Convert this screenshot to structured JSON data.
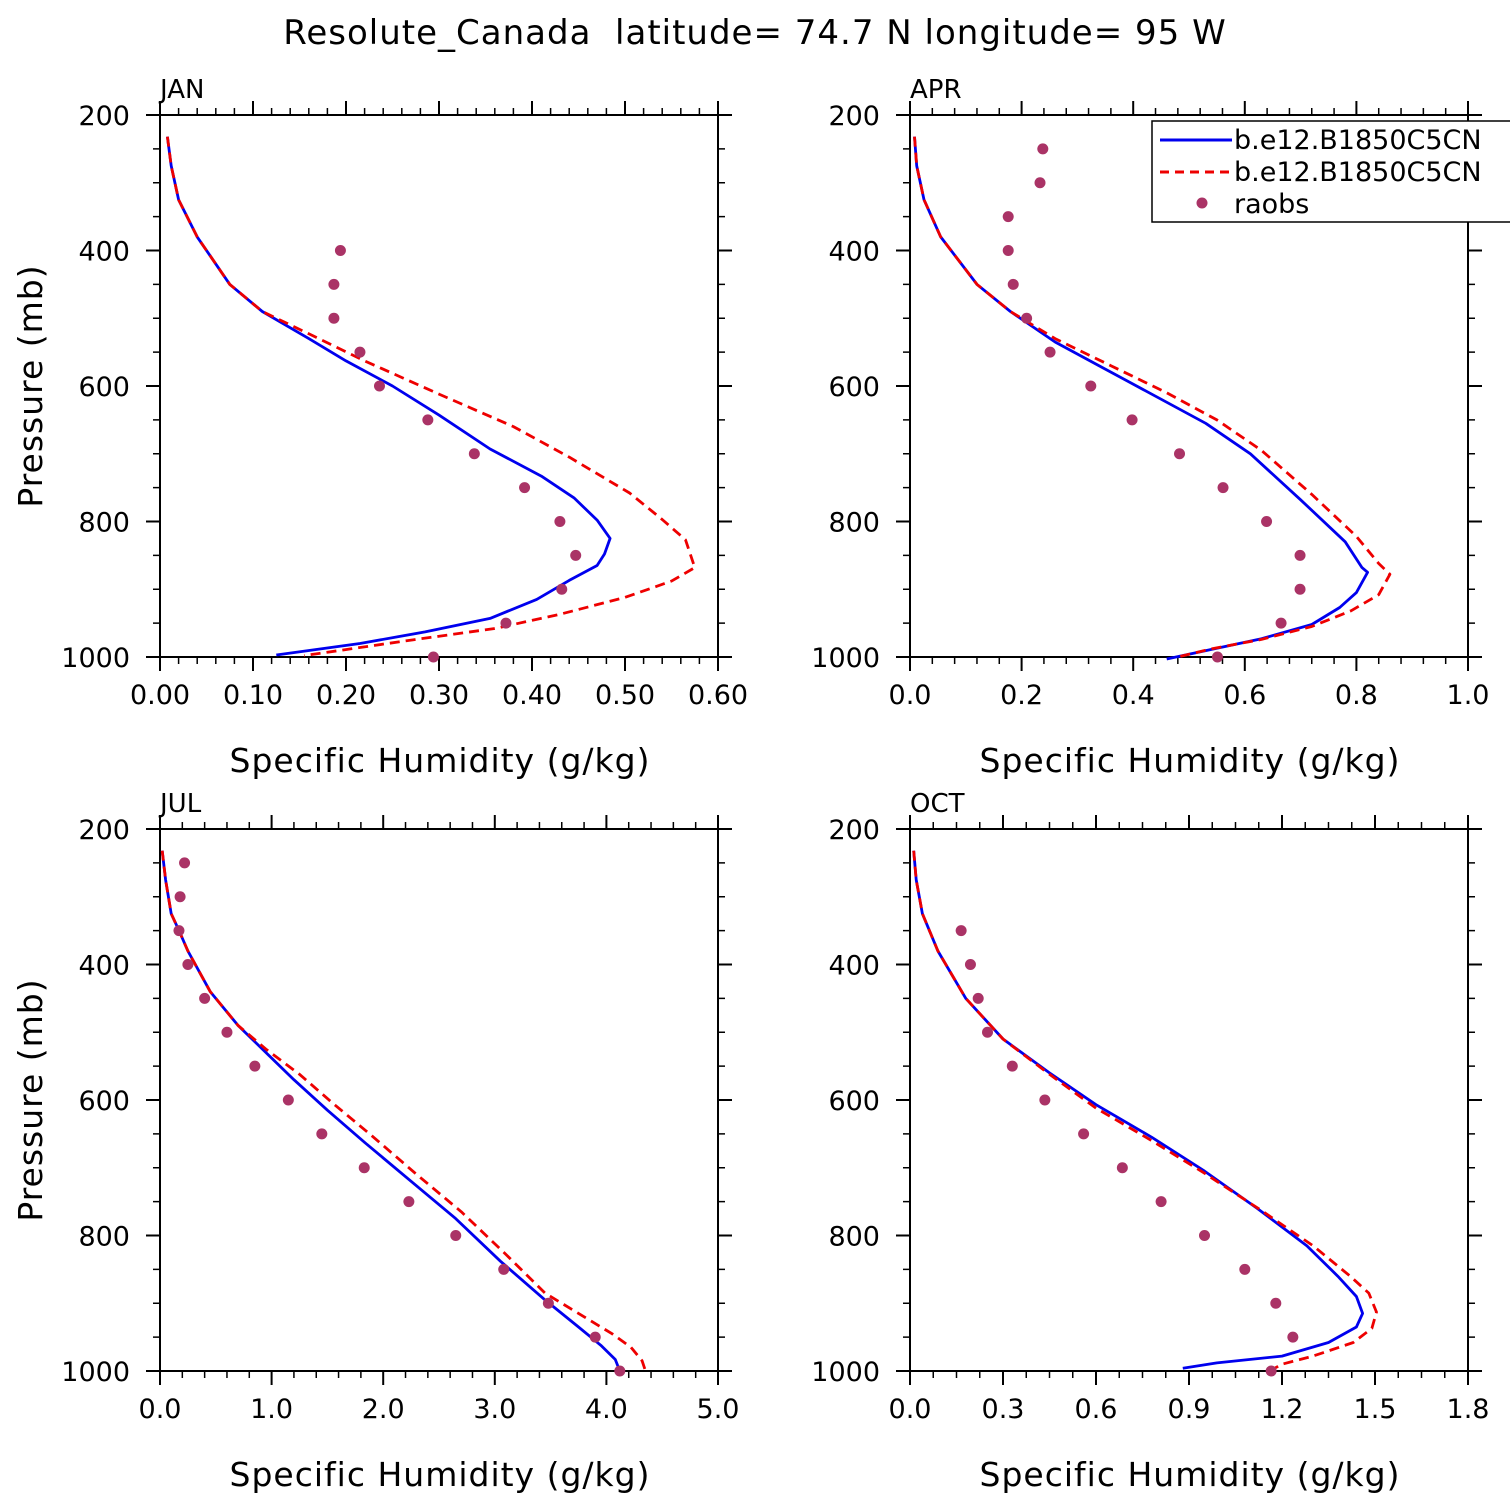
{
  "title": "Resolute_Canada  latitude= 74.7 N longitude= 95 W",
  "legend": {
    "entries": [
      {
        "label": "b.e12.B1850C5CN",
        "style": "solid",
        "color": "#0000ee"
      },
      {
        "label": "b.e12.B1850C5CN",
        "style": "dashed",
        "color": "#ee0000"
      },
      {
        "label": "raobs",
        "style": "dot",
        "color": "#aa3366"
      }
    ]
  },
  "chart_data": [
    {
      "type": "line",
      "panel": "JAN",
      "xlabel": "Specific Humidity (g/kg)",
      "ylabel": "Pressure (mb)",
      "xlim": [
        0,
        0.6
      ],
      "ylim": [
        1000,
        200
      ],
      "xticks": [
        "0.00",
        "0.10",
        "0.20",
        "0.30",
        "0.40",
        "0.50",
        "0.60"
      ],
      "yticks": [
        "200",
        "400",
        "600",
        "800",
        "1000"
      ],
      "series": [
        {
          "name": "b.e12.B1850C5CN",
          "style": "solid",
          "color": "#0000ee",
          "x": [
            0.008,
            0.012,
            0.02,
            0.04,
            0.075,
            0.11,
            0.16,
            0.2,
            0.25,
            0.3,
            0.355,
            0.41,
            0.445,
            0.47,
            0.484,
            0.478,
            0.47,
            0.44,
            0.405,
            0.355,
            0.285,
            0.215,
            0.125
          ],
          "y": [
            232,
            275,
            325,
            380,
            450,
            490,
            530,
            563,
            600,
            643,
            693,
            733,
            765,
            798,
            825,
            848,
            865,
            887,
            915,
            943,
            963,
            980,
            997
          ]
        },
        {
          "name": "b.e12.B1850C5CN",
          "style": "dashed",
          "color": "#ee0000",
          "x": [
            0.008,
            0.012,
            0.02,
            0.04,
            0.075,
            0.11,
            0.16,
            0.22,
            0.3,
            0.38,
            0.44,
            0.505,
            0.54,
            0.565,
            0.575,
            0.55,
            0.5,
            0.43,
            0.36,
            0.27,
            0.21,
            0.155
          ],
          "y": [
            232,
            275,
            325,
            380,
            450,
            490,
            523,
            563,
            612,
            660,
            705,
            758,
            797,
            827,
            868,
            888,
            912,
            937,
            958,
            975,
            987,
            998
          ]
        },
        {
          "name": "raobs",
          "style": "dot",
          "color": "#aa3366",
          "x": [
            0.194,
            0.187,
            0.187,
            0.215,
            0.236,
            0.288,
            0.338,
            0.392,
            0.43,
            0.447,
            0.432,
            0.372,
            0.294
          ],
          "y": [
            400,
            450,
            500,
            550,
            600,
            650,
            700,
            750,
            800,
            850,
            900,
            950,
            1000
          ]
        }
      ]
    },
    {
      "type": "line",
      "panel": "APR",
      "xlabel": "Specific Humidity (g/kg)",
      "ylabel": "",
      "xlim": [
        0,
        1.0
      ],
      "ylim": [
        1000,
        200
      ],
      "xticks": [
        "0.0",
        "0.2",
        "0.4",
        "0.6",
        "0.8",
        "1.0"
      ],
      "yticks": [
        "200",
        "400",
        "600",
        "800",
        "1000"
      ],
      "series": [
        {
          "name": "b.e12.B1850C5CN",
          "style": "solid",
          "color": "#0000ee",
          "x": [
            0.008,
            0.012,
            0.025,
            0.055,
            0.12,
            0.18,
            0.26,
            0.35,
            0.44,
            0.53,
            0.61,
            0.7,
            0.78,
            0.81,
            0.82,
            0.8,
            0.77,
            0.72,
            0.63,
            0.55,
            0.46
          ],
          "y": [
            232,
            275,
            325,
            380,
            450,
            490,
            535,
            575,
            615,
            655,
            700,
            768,
            830,
            868,
            875,
            905,
            927,
            952,
            973,
            987,
            1003
          ]
        },
        {
          "name": "b.e12.B1850C5CN",
          "style": "dashed",
          "color": "#ee0000",
          "x": [
            0.008,
            0.012,
            0.025,
            0.055,
            0.12,
            0.18,
            0.26,
            0.36,
            0.46,
            0.55,
            0.63,
            0.72,
            0.8,
            0.84,
            0.86,
            0.84,
            0.79,
            0.72,
            0.63,
            0.54,
            0.48
          ],
          "y": [
            232,
            275,
            325,
            380,
            450,
            490,
            530,
            570,
            610,
            650,
            695,
            760,
            822,
            862,
            878,
            908,
            932,
            955,
            974,
            988,
            1000
          ]
        },
        {
          "name": "raobs",
          "style": "dot",
          "color": "#aa3366",
          "x": [
            0.238,
            0.233,
            0.176,
            0.176,
            0.185,
            0.209,
            0.251,
            0.324,
            0.398,
            0.483,
            0.561,
            0.639,
            0.699,
            0.699,
            0.665,
            0.551
          ],
          "y": [
            250,
            300,
            350,
            400,
            450,
            500,
            550,
            600,
            650,
            700,
            750,
            800,
            850,
            900,
            950,
            1000
          ]
        }
      ]
    },
    {
      "type": "line",
      "panel": "JUL",
      "xlabel": "Specific Humidity (g/kg)",
      "ylabel": "Pressure (mb)",
      "xlim": [
        0,
        5.0
      ],
      "ylim": [
        1000,
        200
      ],
      "xticks": [
        "0.0",
        "1.0",
        "2.0",
        "3.0",
        "4.0",
        "5.0"
      ],
      "yticks": [
        "200",
        "400",
        "600",
        "800",
        "1000"
      ],
      "series": [
        {
          "name": "b.e12.B1850C5CN",
          "style": "solid",
          "color": "#0000ee",
          "x": [
            0.02,
            0.05,
            0.1,
            0.17,
            0.25,
            0.45,
            0.7,
            0.95,
            1.2,
            1.5,
            1.85,
            2.25,
            2.65,
            3.05,
            3.45,
            3.75,
            3.95,
            4.08,
            4.12
          ],
          "y": [
            232,
            275,
            325,
            350,
            380,
            440,
            490,
            530,
            570,
            615,
            665,
            720,
            775,
            838,
            895,
            935,
            962,
            983,
            1000
          ]
        },
        {
          "name": "b.e12.B1850C5CN",
          "style": "dashed",
          "color": "#ee0000",
          "x": [
            0.02,
            0.05,
            0.1,
            0.17,
            0.25,
            0.45,
            0.7,
            0.95,
            1.25,
            1.55,
            1.9,
            2.3,
            2.7,
            3.1,
            3.45,
            3.8,
            4.05,
            4.22,
            4.32,
            4.35
          ],
          "y": [
            232,
            275,
            325,
            350,
            380,
            440,
            490,
            525,
            562,
            605,
            653,
            710,
            765,
            828,
            885,
            920,
            945,
            965,
            985,
            1000
          ]
        },
        {
          "name": "raobs",
          "style": "dot",
          "color": "#aa3366",
          "x": [
            0.22,
            0.18,
            0.17,
            0.25,
            0.4,
            0.6,
            0.85,
            1.15,
            1.45,
            1.83,
            2.23,
            2.65,
            3.08,
            3.48,
            3.9,
            4.12
          ],
          "y": [
            250,
            300,
            350,
            400,
            450,
            500,
            550,
            600,
            650,
            700,
            750,
            800,
            850,
            900,
            950,
            1000
          ]
        }
      ]
    },
    {
      "type": "line",
      "panel": "OCT",
      "xlabel": "Specific Humidity (g/kg)",
      "ylabel": "",
      "xlim": [
        0,
        1.8
      ],
      "ylim": [
        1000,
        200
      ],
      "xticks": [
        "0.0",
        "0.3",
        "0.6",
        "0.9",
        "1.2",
        "1.5",
        "1.8"
      ],
      "yticks": [
        "200",
        "400",
        "600",
        "800",
        "1000"
      ],
      "series": [
        {
          "name": "b.e12.B1850C5CN",
          "style": "solid",
          "color": "#0000ee",
          "x": [
            0.012,
            0.02,
            0.04,
            0.09,
            0.18,
            0.3,
            0.45,
            0.6,
            0.78,
            0.95,
            1.12,
            1.28,
            1.38,
            1.44,
            1.46,
            1.44,
            1.35,
            1.2,
            0.99,
            0.88
          ],
          "y": [
            232,
            275,
            325,
            380,
            450,
            510,
            560,
            607,
            655,
            705,
            760,
            815,
            860,
            890,
            915,
            935,
            958,
            978,
            988,
            996
          ]
        },
        {
          "name": "b.e12.B1850C5CN",
          "style": "dashed",
          "color": "#ee0000",
          "x": [
            0.012,
            0.02,
            0.04,
            0.09,
            0.18,
            0.3,
            0.45,
            0.6,
            0.78,
            0.95,
            1.13,
            1.3,
            1.42,
            1.48,
            1.505,
            1.49,
            1.43,
            1.3,
            1.2,
            1.16
          ],
          "y": [
            232,
            275,
            325,
            380,
            450,
            510,
            562,
            612,
            660,
            708,
            762,
            815,
            860,
            885,
            913,
            937,
            958,
            978,
            990,
            1000
          ]
        },
        {
          "name": "raobs",
          "style": "dot",
          "color": "#aa3366",
          "x": [
            0.165,
            0.195,
            0.22,
            0.25,
            0.33,
            0.435,
            0.56,
            0.685,
            0.81,
            0.95,
            1.08,
            1.18,
            1.235,
            1.165
          ],
          "y": [
            350,
            400,
            450,
            500,
            550,
            600,
            650,
            700,
            750,
            800,
            850,
            900,
            950,
            1000
          ]
        }
      ]
    }
  ]
}
